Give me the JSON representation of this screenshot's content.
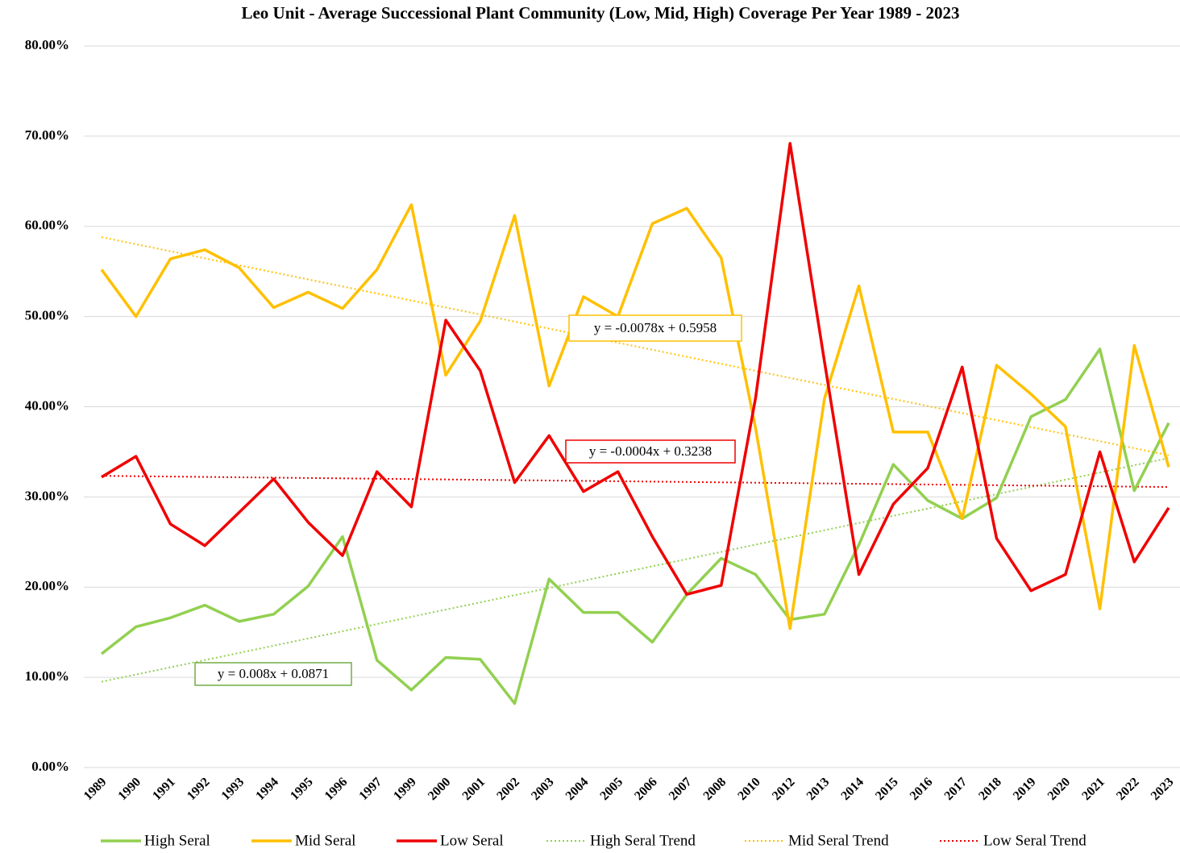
{
  "chart_data": {
    "type": "line",
    "title": "Leo Unit - Average Successional Plant Community (Low, Mid, High) Coverage Per Year 1989 - 2023",
    "categories": [
      "1989",
      "1990",
      "1991",
      "1992",
      "1993",
      "1994",
      "1995",
      "1996",
      "1997",
      "1999",
      "2000",
      "2001",
      "2002",
      "2003",
      "2004",
      "2005",
      "2006",
      "2007",
      "2008",
      "2010",
      "2012",
      "2013",
      "2014",
      "2015",
      "2016",
      "2017",
      "2018",
      "2019",
      "2020",
      "2021",
      "2022",
      "2023"
    ],
    "ylim": [
      0,
      80
    ],
    "yticks": [
      {
        "value": 0,
        "label": "0.00%"
      },
      {
        "value": 10,
        "label": "10.00%"
      },
      {
        "value": 20,
        "label": "20.00%"
      },
      {
        "value": 30,
        "label": "30.00%"
      },
      {
        "value": 40,
        "label": "40.00%"
      },
      {
        "value": 50,
        "label": "50.00%"
      },
      {
        "value": 60,
        "label": "60.00%"
      },
      {
        "value": 70,
        "label": "70.00%"
      },
      {
        "value": 80,
        "label": "80.00%"
      }
    ],
    "grid": true,
    "legend": "bottom",
    "series": [
      {
        "name": "High Seral",
        "color": "#92d050",
        "style": "solid",
        "values": [
          12.6,
          15.6,
          16.6,
          18.0,
          16.2,
          17.0,
          20.1,
          25.6,
          11.9,
          8.6,
          12.2,
          12.0,
          7.1,
          20.9,
          17.2,
          17.2,
          13.9,
          19.2,
          23.2,
          21.4,
          16.4,
          17.0,
          24.7,
          33.6,
          29.6,
          27.6,
          29.9,
          38.9,
          40.8,
          46.4,
          30.7,
          38.2
        ]
      },
      {
        "name": "Mid Seral",
        "color": "#ffc000",
        "style": "solid",
        "values": [
          55.2,
          50.0,
          56.4,
          57.4,
          55.4,
          51.0,
          52.7,
          50.9,
          55.2,
          62.4,
          43.5,
          49.5,
          61.2,
          42.3,
          52.2,
          50.0,
          60.3,
          62.0,
          56.5,
          37.6,
          15.4,
          40.9,
          53.4,
          37.2,
          37.2,
          27.6,
          44.6,
          41.4,
          37.8,
          17.6,
          46.8,
          33.3
        ]
      },
      {
        "name": "Low Seral",
        "color": "#f00000",
        "style": "solid",
        "values": [
          32.2,
          34.5,
          27.0,
          24.6,
          28.3,
          32.0,
          27.2,
          23.5,
          32.8,
          28.9,
          49.6,
          44.0,
          31.6,
          36.8,
          30.6,
          32.8,
          25.6,
          19.2,
          20.2,
          41.0,
          69.2,
          45.0,
          21.4,
          29.2,
          33.2,
          44.4,
          25.4,
          19.6,
          21.4,
          35.0,
          22.8,
          28.8
        ]
      },
      {
        "name": "High Seral Trend",
        "color": "#92d050",
        "style": "dotted",
        "values": [
          9.51,
          10.31,
          11.11,
          11.91,
          12.71,
          13.51,
          14.31,
          15.11,
          15.91,
          16.71,
          17.51,
          18.31,
          19.11,
          19.91,
          20.71,
          21.51,
          22.31,
          23.11,
          23.91,
          24.71,
          25.51,
          26.31,
          27.11,
          27.91,
          28.71,
          29.51,
          30.31,
          31.11,
          31.91,
          32.71,
          33.51,
          34.31
        ]
      },
      {
        "name": "Mid Seral Trend",
        "color": "#ffc000",
        "style": "dotted",
        "values": [
          58.8,
          58.02,
          57.24,
          56.46,
          55.68,
          54.9,
          54.12,
          53.34,
          52.56,
          51.78,
          51.0,
          50.22,
          49.44,
          48.66,
          47.88,
          47.1,
          46.32,
          45.54,
          44.76,
          43.98,
          43.2,
          42.42,
          41.64,
          40.86,
          40.08,
          39.3,
          38.52,
          37.74,
          36.96,
          36.18,
          35.4,
          34.62
        ]
      },
      {
        "name": "Low Seral Trend",
        "color": "#f00000",
        "style": "dotted",
        "values": [
          32.34,
          32.3,
          32.26,
          32.22,
          32.18,
          32.14,
          32.1,
          32.06,
          32.02,
          31.98,
          31.94,
          31.9,
          31.86,
          31.82,
          31.78,
          31.74,
          31.7,
          31.66,
          31.62,
          31.58,
          31.54,
          31.5,
          31.46,
          31.42,
          31.38,
          31.34,
          31.3,
          31.26,
          31.22,
          31.18,
          31.14,
          31.1
        ]
      }
    ],
    "annotations": [
      {
        "text": "y = -0.0078x + 0.5958",
        "color": "#ffc000"
      },
      {
        "text": "y = -0.0004x + 0.3238",
        "color": "#f00000"
      },
      {
        "text": "y = 0.008x + 0.0871",
        "color": "#70ad47"
      }
    ]
  }
}
